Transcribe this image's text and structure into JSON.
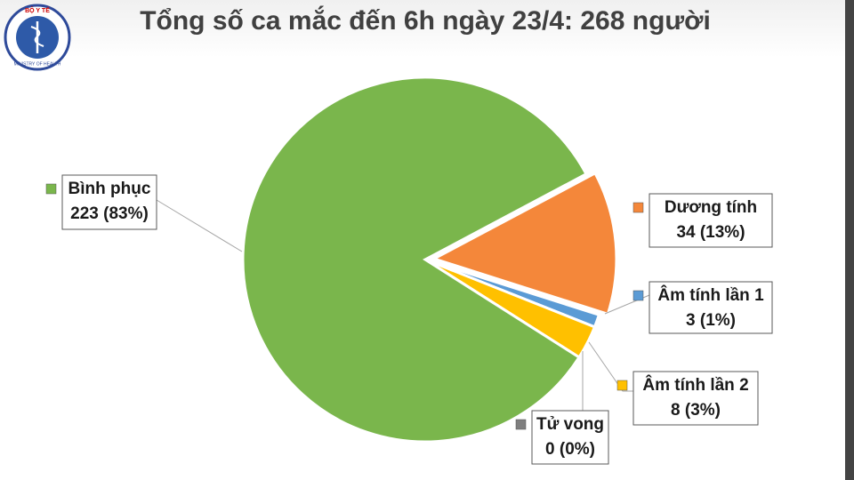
{
  "logo": {
    "top": "BỘ Y TẾ",
    "bottom": "MINISTRY OF HEALTH"
  },
  "chart_data": {
    "type": "pie",
    "title": "Tổng số ca mắc đến 6h ngày 23/4: 268 người",
    "categories": [
      "Dương tính",
      "Âm tính lần 1",
      "Âm tính lần 2",
      "Tử vong",
      "Bình phục"
    ],
    "values": [
      34,
      3,
      8,
      0,
      223
    ],
    "value_labels": [
      "34 (13%)",
      "3 (1%)",
      "8 (3%)",
      "0 (0%)",
      "223 (83%)"
    ],
    "colors": [
      "#f4873a",
      "#5b9bd5",
      "#ffc000",
      "#7f7f7f",
      "#7ab64c"
    ]
  }
}
